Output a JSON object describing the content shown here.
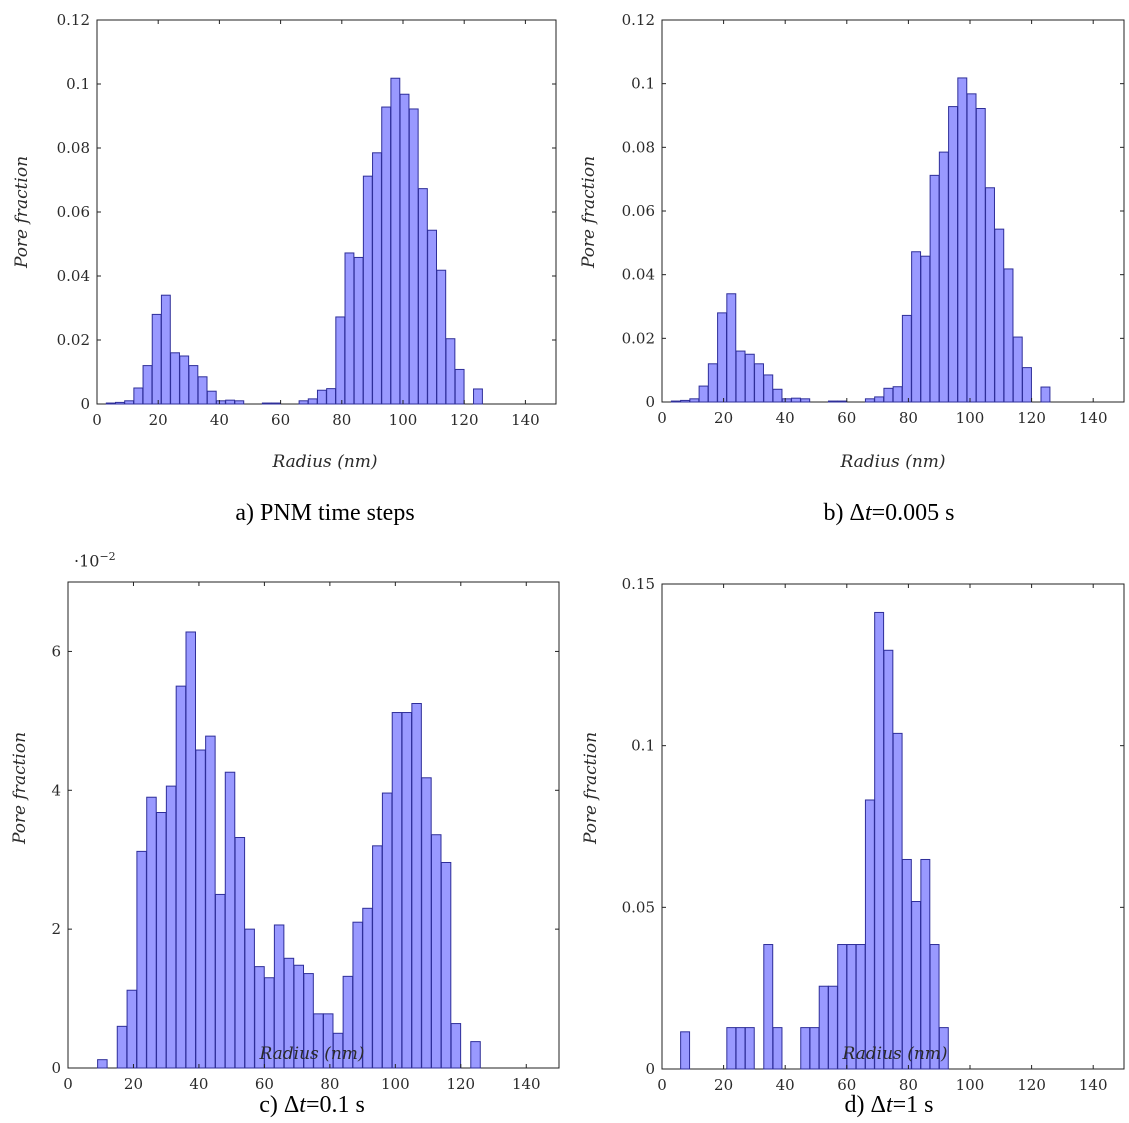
{
  "chart_data": [
    {
      "type": "bar",
      "caption": {
        "prefix": "a) PNM time steps",
        "var": "",
        "suffix": ""
      },
      "xlabel": "Radius (nm)",
      "ylabel": "Pore fraction",
      "xlim": [
        0,
        150
      ],
      "ylim": [
        0,
        0.12
      ],
      "xticks": [
        "0",
        "20",
        "40",
        "60",
        "80",
        "100",
        "120",
        "140"
      ],
      "yticks": [
        "0",
        "0.02",
        "0.04",
        "0.06",
        "0.08",
        "0.1",
        "0.12"
      ],
      "bin_width": 2.9,
      "bar_color": "#9999ff",
      "edge_color": "#2e2e99",
      "series": [
        {
          "x": [
            4.5,
            7.5,
            10.5,
            13.5,
            16.5,
            19.5,
            22.5,
            25.5,
            28.5,
            31.5,
            34.5,
            37.5,
            40.5,
            43.5,
            46.5,
            49.5,
            52.5,
            55.5,
            58.5,
            61.5,
            64.5,
            67.5,
            70.5,
            73.5,
            76.5,
            79.5,
            82.5,
            85.5,
            88.5,
            91.5,
            94.5,
            97.5,
            100.5,
            103.5,
            106.5,
            109.5,
            112.5,
            115.5,
            118.5,
            121.5,
            124.5
          ],
          "values": [
            0.0003,
            0.0005,
            0.001,
            0.005,
            0.012,
            0.028,
            0.034,
            0.016,
            0.015,
            0.012,
            0.0085,
            0.004,
            0.001,
            0.0012,
            0.001,
            0,
            0,
            0.0003,
            0.0003,
            0,
            0,
            0.001,
            0.0016,
            0.0043,
            0.0048,
            0.0272,
            0.0472,
            0.0458,
            0.0712,
            0.0785,
            0.0928,
            0.1018,
            0.0968,
            0.0922,
            0.0673,
            0.0543,
            0.0418,
            0.0204,
            0.0108,
            0,
            0.0047
          ]
        }
      ]
    },
    {
      "type": "bar",
      "caption": {
        "prefix": "b) Δ",
        "var": "t",
        "suffix": "=0.005 s"
      },
      "xlabel": "Radius (nm)",
      "ylabel": "Pore fraction",
      "xlim": [
        0,
        150
      ],
      "ylim": [
        0,
        0.12
      ],
      "xticks": [
        "0",
        "20",
        "40",
        "60",
        "80",
        "100",
        "120",
        "140"
      ],
      "yticks": [
        "0",
        "0.02",
        "0.04",
        "0.06",
        "0.08",
        "0.1",
        "0.12"
      ],
      "bin_width": 2.9,
      "bar_color": "#9999ff",
      "edge_color": "#2e2e99",
      "series": [
        {
          "x": [
            4.5,
            7.5,
            10.5,
            13.5,
            16.5,
            19.5,
            22.5,
            25.5,
            28.5,
            31.5,
            34.5,
            37.5,
            40.5,
            43.5,
            46.5,
            49.5,
            52.5,
            55.5,
            58.5,
            61.5,
            64.5,
            67.5,
            70.5,
            73.5,
            76.5,
            79.5,
            82.5,
            85.5,
            88.5,
            91.5,
            94.5,
            97.5,
            100.5,
            103.5,
            106.5,
            109.5,
            112.5,
            115.5,
            118.5,
            121.5,
            124.5
          ],
          "values": [
            0.0003,
            0.0005,
            0.001,
            0.005,
            0.012,
            0.028,
            0.034,
            0.016,
            0.015,
            0.012,
            0.0085,
            0.004,
            0.001,
            0.0012,
            0.001,
            0,
            0,
            0.0003,
            0.0003,
            0,
            0,
            0.001,
            0.0016,
            0.0043,
            0.0048,
            0.0272,
            0.0472,
            0.0458,
            0.0712,
            0.0785,
            0.0928,
            0.1018,
            0.0968,
            0.0922,
            0.0673,
            0.0543,
            0.0418,
            0.0204,
            0.0108,
            0,
            0.0047
          ]
        }
      ]
    },
    {
      "type": "bar",
      "caption": {
        "prefix": "c) Δ",
        "var": "t",
        "suffix": "=0.1 s"
      },
      "xlabel": "Radius (nm)",
      "ylabel": "Pore fraction",
      "scale_label": {
        "base": "·10",
        "exp": "−2"
      },
      "xlim": [
        0,
        150
      ],
      "ylim": [
        0,
        7
      ],
      "xticks": [
        "0",
        "20",
        "40",
        "60",
        "80",
        "100",
        "120",
        "140"
      ],
      "yticks": [
        "0",
        "2",
        "4",
        "6"
      ],
      "bin_width": 2.9,
      "bar_color": "#9999ff",
      "edge_color": "#2e2e99",
      "series": [
        {
          "x": [
            10.5,
            13.5,
            16.5,
            19.5,
            22.5,
            25.5,
            28.5,
            31.5,
            34.5,
            37.5,
            40.5,
            43.5,
            46.5,
            49.5,
            52.5,
            55.5,
            58.5,
            61.5,
            64.5,
            67.5,
            70.5,
            73.5,
            76.5,
            79.5,
            82.5,
            85.5,
            88.5,
            91.5,
            94.5,
            97.5,
            100.5,
            103.5,
            106.5,
            109.5,
            112.5,
            115.5,
            118.5,
            121.5,
            124.5
          ],
          "values": [
            0.12,
            0,
            0.6,
            1.12,
            3.12,
            3.9,
            3.68,
            4.06,
            5.5,
            6.28,
            4.58,
            4.78,
            2.5,
            4.26,
            3.32,
            2.0,
            1.46,
            1.3,
            2.06,
            1.58,
            1.48,
            1.36,
            0.78,
            0.78,
            0.5,
            1.32,
            2.1,
            2.3,
            3.2,
            3.96,
            5.12,
            5.12,
            5.25,
            4.18,
            3.36,
            2.96,
            0.64,
            0,
            0.38
          ]
        }
      ]
    },
    {
      "type": "bar",
      "caption": {
        "prefix": "d) Δ",
        "var": "t",
        "suffix": "=1 s"
      },
      "xlabel": "Radius (nm)",
      "ylabel": "Pore fraction",
      "xlim": [
        0,
        150
      ],
      "ylim": [
        0,
        0.15
      ],
      "xticks": [
        "0",
        "20",
        "40",
        "60",
        "80",
        "100",
        "120",
        "140"
      ],
      "yticks": [
        "0",
        "0.05",
        "0.1",
        "0.15"
      ],
      "bin_width": 2.9,
      "bar_color": "#9999ff",
      "edge_color": "#2e2e99",
      "series": [
        {
          "x": [
            7.5,
            22.5,
            25.5,
            28.5,
            34.5,
            37.5,
            46.5,
            49.5,
            52.5,
            55.5,
            58.5,
            61.5,
            64.5,
            67.5,
            70.5,
            73.5,
            76.5,
            79.5,
            82.5,
            85.5,
            88.5,
            91.5
          ],
          "values": [
            0.0115,
            0.0128,
            0.0128,
            0.0128,
            0.0385,
            0.0128,
            0.0128,
            0.0128,
            0.0256,
            0.0256,
            0.0385,
            0.0385,
            0.0385,
            0.0832,
            0.1412,
            0.1295,
            0.1038,
            0.0648,
            0.0518,
            0.0648,
            0.0385,
            0.0128
          ]
        }
      ]
    }
  ]
}
